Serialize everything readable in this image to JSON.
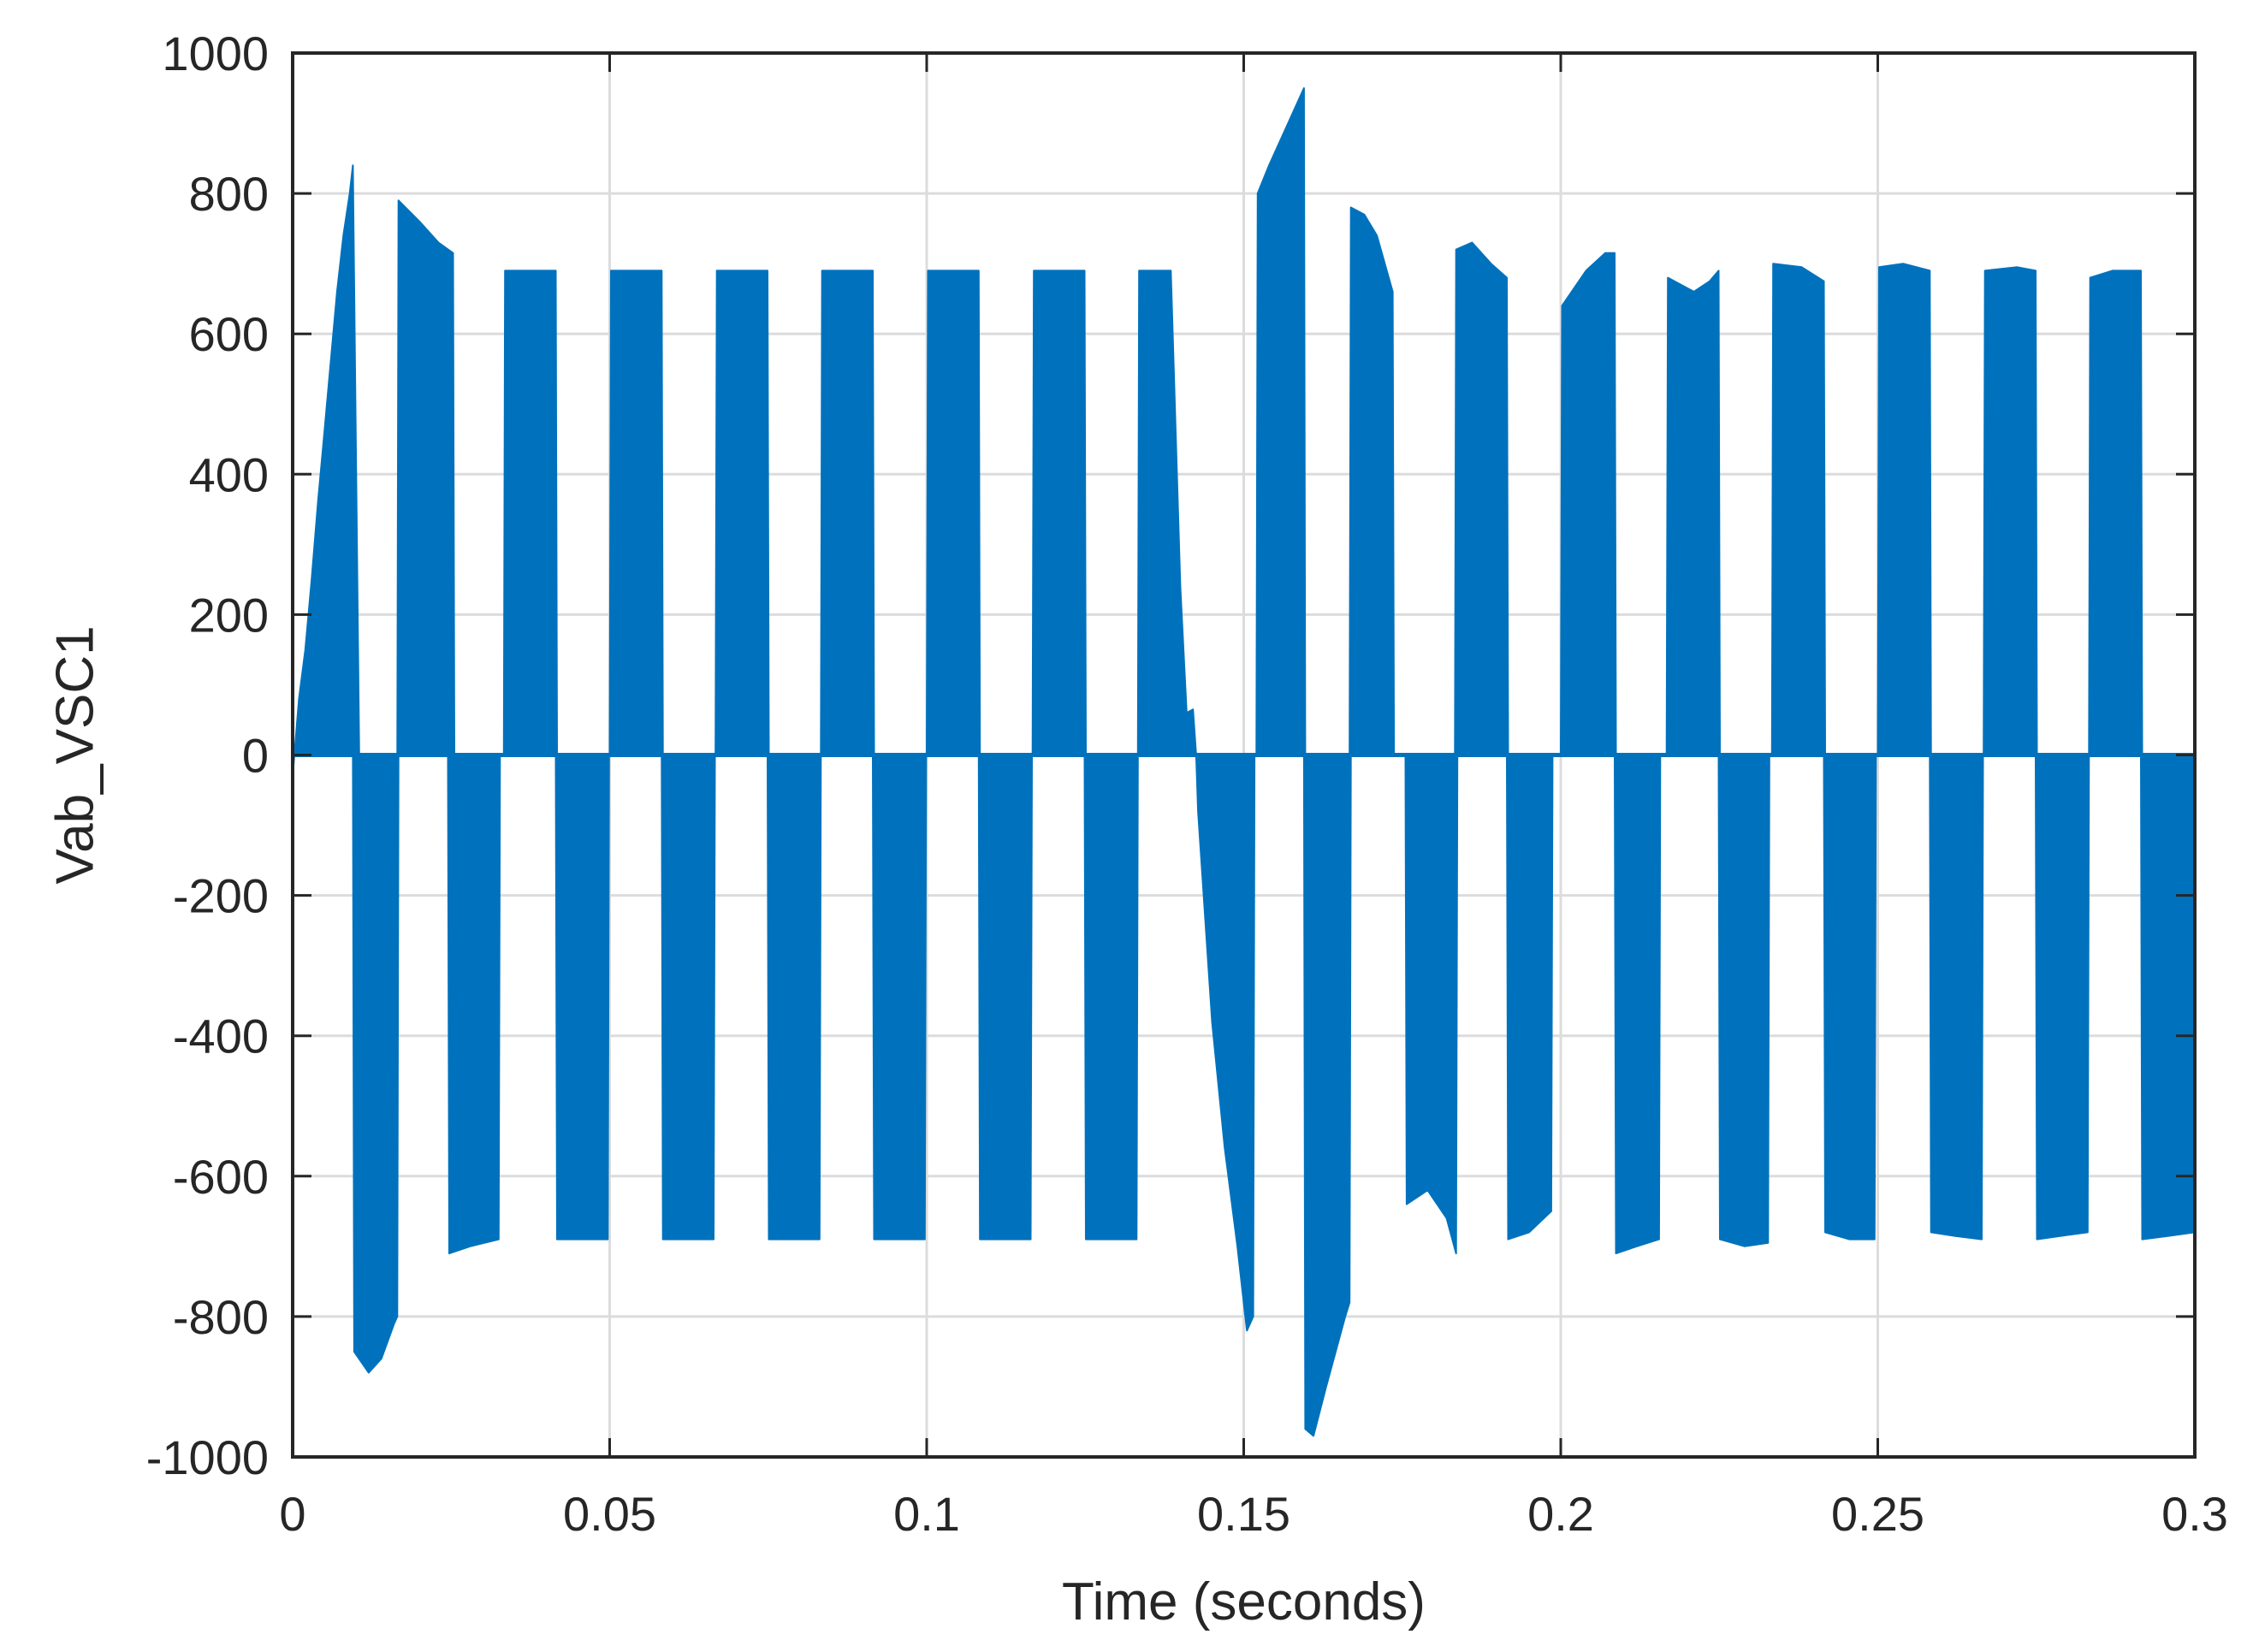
{
  "chart_data": {
    "type": "line",
    "title": "",
    "xlabel": "Time (seconds)",
    "ylabel": "Vab_VSC1",
    "xlim": [
      0,
      0.3
    ],
    "ylim": [
      -1000,
      1000
    ],
    "xticks": [
      0,
      0.05,
      0.1,
      0.15,
      0.2,
      0.25,
      0.3
    ],
    "xtick_labels": [
      "0",
      "0.05",
      "0.1",
      "0.15",
      "0.2",
      "0.25",
      "0.3"
    ],
    "yticks": [
      -1000,
      -800,
      -600,
      -400,
      -200,
      0,
      200,
      400,
      600,
      800,
      1000
    ],
    "ytick_labels": [
      "-1000",
      "-800",
      "-600",
      "-400",
      "-200",
      "0",
      "200",
      "400",
      "600",
      "800",
      "1000"
    ],
    "grid": true,
    "legend": "none",
    "series": [
      {
        "color": "#0072BD",
        "style": "PWM-switched voltage envelope (filled bands)",
        "positive_envelope": [
          [
            0.0,
            -30
          ],
          [
            0.001,
            80
          ],
          [
            0.002,
            150
          ],
          [
            0.003,
            250
          ],
          [
            0.004,
            360
          ],
          [
            0.005,
            460
          ],
          [
            0.006,
            560
          ],
          [
            0.007,
            660
          ],
          [
            0.008,
            740
          ],
          [
            0.009,
            800
          ],
          [
            0.0095,
            840
          ],
          [
            0.0105,
            0
          ],
          [
            0.0165,
            0
          ],
          [
            0.0167,
            790
          ],
          [
            0.02,
            760
          ],
          [
            0.023,
            730
          ],
          [
            0.0253,
            715
          ],
          [
            0.0255,
            0
          ],
          [
            0.0333,
            0
          ],
          [
            0.0335,
            690
          ],
          [
            0.0415,
            690
          ],
          [
            0.0417,
            0
          ],
          [
            0.05,
            0
          ],
          [
            0.0502,
            690
          ],
          [
            0.0582,
            690
          ],
          [
            0.0584,
            0
          ],
          [
            0.0667,
            0
          ],
          [
            0.0669,
            690
          ],
          [
            0.0749,
            690
          ],
          [
            0.0751,
            0
          ],
          [
            0.0833,
            0
          ],
          [
            0.0835,
            690
          ],
          [
            0.0915,
            690
          ],
          [
            0.0917,
            0
          ],
          [
            0.1,
            0
          ],
          [
            0.1002,
            690
          ],
          [
            0.1082,
            690
          ],
          [
            0.1084,
            0
          ],
          [
            0.1167,
            0
          ],
          [
            0.1169,
            690
          ],
          [
            0.1249,
            690
          ],
          [
            0.1251,
            0
          ],
          [
            0.1333,
            0
          ],
          [
            0.1335,
            690
          ],
          [
            0.1385,
            690
          ],
          [
            0.14,
            240
          ],
          [
            0.141,
            60
          ],
          [
            0.142,
            65
          ],
          [
            0.1425,
            0
          ],
          [
            0.152,
            0
          ],
          [
            0.1522,
            800
          ],
          [
            0.154,
            840
          ],
          [
            0.157,
            900
          ],
          [
            0.1595,
            950
          ],
          [
            0.1597,
            0
          ],
          [
            0.1667,
            0
          ],
          [
            0.1669,
            780
          ],
          [
            0.169,
            770
          ],
          [
            0.171,
            740
          ],
          [
            0.1735,
            660
          ],
          [
            0.1737,
            0
          ],
          [
            0.1833,
            0
          ],
          [
            0.1835,
            720
          ],
          [
            0.186,
            730
          ],
          [
            0.189,
            700
          ],
          [
            0.1915,
            680
          ],
          [
            0.1917,
            0
          ],
          [
            0.2,
            0
          ],
          [
            0.2002,
            640
          ],
          [
            0.204,
            690
          ],
          [
            0.207,
            715
          ],
          [
            0.2085,
            715
          ],
          [
            0.2087,
            0
          ],
          [
            0.2167,
            0
          ],
          [
            0.2169,
            680
          ],
          [
            0.221,
            660
          ],
          [
            0.2235,
            675
          ],
          [
            0.2249,
            690
          ],
          [
            0.2251,
            0
          ],
          [
            0.2333,
            0
          ],
          [
            0.2335,
            700
          ],
          [
            0.238,
            695
          ],
          [
            0.2415,
            675
          ],
          [
            0.2417,
            0
          ],
          [
            0.25,
            0
          ],
          [
            0.2502,
            695
          ],
          [
            0.254,
            700
          ],
          [
            0.2582,
            690
          ],
          [
            0.2584,
            0
          ],
          [
            0.2667,
            0
          ],
          [
            0.2669,
            690
          ],
          [
            0.272,
            695
          ],
          [
            0.2749,
            690
          ],
          [
            0.2751,
            0
          ],
          [
            0.2833,
            0
          ],
          [
            0.2835,
            680
          ],
          [
            0.287,
            690
          ],
          [
            0.2915,
            690
          ],
          [
            0.2917,
            0
          ],
          [
            0.3,
            0
          ]
        ],
        "negative_envelope": [
          [
            0.0,
            0
          ],
          [
            0.0095,
            0
          ],
          [
            0.0097,
            -850
          ],
          [
            0.012,
            -880
          ],
          [
            0.014,
            -860
          ],
          [
            0.016,
            -810
          ],
          [
            0.0165,
            -800
          ],
          [
            0.0167,
            0
          ],
          [
            0.0245,
            0
          ],
          [
            0.0247,
            -710
          ],
          [
            0.028,
            -700
          ],
          [
            0.0325,
            -690
          ],
          [
            0.0327,
            0
          ],
          [
            0.0415,
            0
          ],
          [
            0.0417,
            -690
          ],
          [
            0.0497,
            -690
          ],
          [
            0.0499,
            0
          ],
          [
            0.0582,
            0
          ],
          [
            0.0584,
            -690
          ],
          [
            0.0664,
            -690
          ],
          [
            0.0666,
            0
          ],
          [
            0.0749,
            0
          ],
          [
            0.0751,
            -690
          ],
          [
            0.0831,
            -690
          ],
          [
            0.0833,
            0
          ],
          [
            0.0915,
            0
          ],
          [
            0.0917,
            -690
          ],
          [
            0.0997,
            -690
          ],
          [
            0.0999,
            0
          ],
          [
            0.1082,
            0
          ],
          [
            0.1084,
            -690
          ],
          [
            0.1164,
            -690
          ],
          [
            0.1166,
            0
          ],
          [
            0.1249,
            0
          ],
          [
            0.1251,
            -690
          ],
          [
            0.1331,
            -690
          ],
          [
            0.1333,
            0
          ],
          [
            0.1425,
            0
          ],
          [
            0.1428,
            -80
          ],
          [
            0.145,
            -380
          ],
          [
            0.147,
            -560
          ],
          [
            0.149,
            -700
          ],
          [
            0.1505,
            -820
          ],
          [
            0.1515,
            -800
          ],
          [
            0.1517,
            0
          ],
          [
            0.1595,
            0
          ],
          [
            0.1597,
            -960
          ],
          [
            0.161,
            -970
          ],
          [
            0.163,
            -900
          ],
          [
            0.166,
            -800
          ],
          [
            0.1667,
            -780
          ],
          [
            0.1669,
            0
          ],
          [
            0.1755,
            0
          ],
          [
            0.1757,
            -640
          ],
          [
            0.179,
            -620
          ],
          [
            0.182,
            -660
          ],
          [
            0.1835,
            -710
          ],
          [
            0.1837,
            0
          ],
          [
            0.1915,
            0
          ],
          [
            0.1917,
            -690
          ],
          [
            0.195,
            -680
          ],
          [
            0.1985,
            -650
          ],
          [
            0.1987,
            0
          ],
          [
            0.2085,
            0
          ],
          [
            0.2087,
            -710
          ],
          [
            0.212,
            -700
          ],
          [
            0.2155,
            -690
          ],
          [
            0.2157,
            0
          ],
          [
            0.2249,
            0
          ],
          [
            0.2251,
            -690
          ],
          [
            0.229,
            -700
          ],
          [
            0.2327,
            -695
          ],
          [
            0.2329,
            0
          ],
          [
            0.2415,
            0
          ],
          [
            0.2417,
            -680
          ],
          [
            0.2455,
            -690
          ],
          [
            0.2495,
            -690
          ],
          [
            0.2497,
            0
          ],
          [
            0.2582,
            0
          ],
          [
            0.2584,
            -680
          ],
          [
            0.262,
            -685
          ],
          [
            0.2664,
            -690
          ],
          [
            0.2666,
            0
          ],
          [
            0.2749,
            0
          ],
          [
            0.2751,
            -690
          ],
          [
            0.279,
            -685
          ],
          [
            0.2831,
            -680
          ],
          [
            0.2833,
            0
          ],
          [
            0.2915,
            0
          ],
          [
            0.2917,
            -690
          ],
          [
            0.296,
            -685
          ],
          [
            0.3,
            -680
          ]
        ]
      }
    ]
  }
}
